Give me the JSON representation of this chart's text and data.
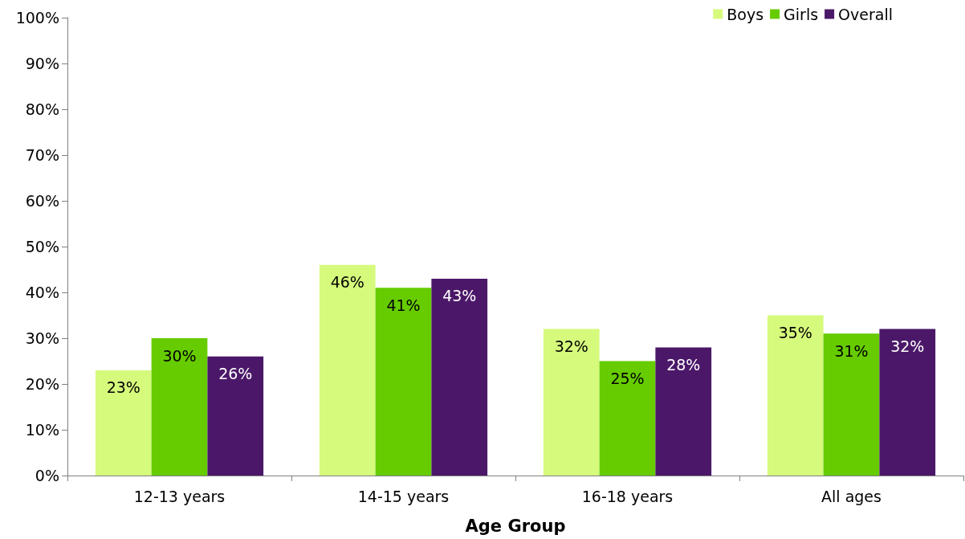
{
  "chart_data": {
    "type": "bar",
    "xlabel": "Age Group",
    "categories": [
      "12-13 years",
      "14-15 years",
      "16-18 years",
      "All ages"
    ],
    "series": [
      {
        "name": "Boys",
        "color": "#d6fa7c",
        "values": [
          23,
          46,
          32,
          35
        ],
        "value_labels": [
          "23%",
          "46%",
          "32%",
          "35%"
        ]
      },
      {
        "name": "Girls",
        "color": "#66cc00",
        "values": [
          30,
          41,
          25,
          31
        ],
        "value_labels": [
          "30%",
          "41%",
          "25%",
          "31%"
        ]
      },
      {
        "name": "Overall",
        "color": "#4b1869",
        "values": [
          26,
          43,
          28,
          32
        ],
        "value_labels": [
          "26%",
          "43%",
          "28%",
          "32%"
        ]
      }
    ],
    "ylim": [
      0,
      100
    ],
    "yticks": [
      {
        "value": 0,
        "label": "0%"
      },
      {
        "value": 10,
        "label": "10%"
      },
      {
        "value": 20,
        "label": "20%"
      },
      {
        "value": 30,
        "label": "30%"
      },
      {
        "value": 40,
        "label": "40%"
      },
      {
        "value": 50,
        "label": "50%"
      },
      {
        "value": 60,
        "label": "60%"
      },
      {
        "value": 70,
        "label": "70%"
      },
      {
        "value": 80,
        "label": "80%"
      },
      {
        "value": 90,
        "label": "90%"
      },
      {
        "value": 100,
        "label": "100%"
      }
    ],
    "grid": false,
    "legend": "top right"
  }
}
